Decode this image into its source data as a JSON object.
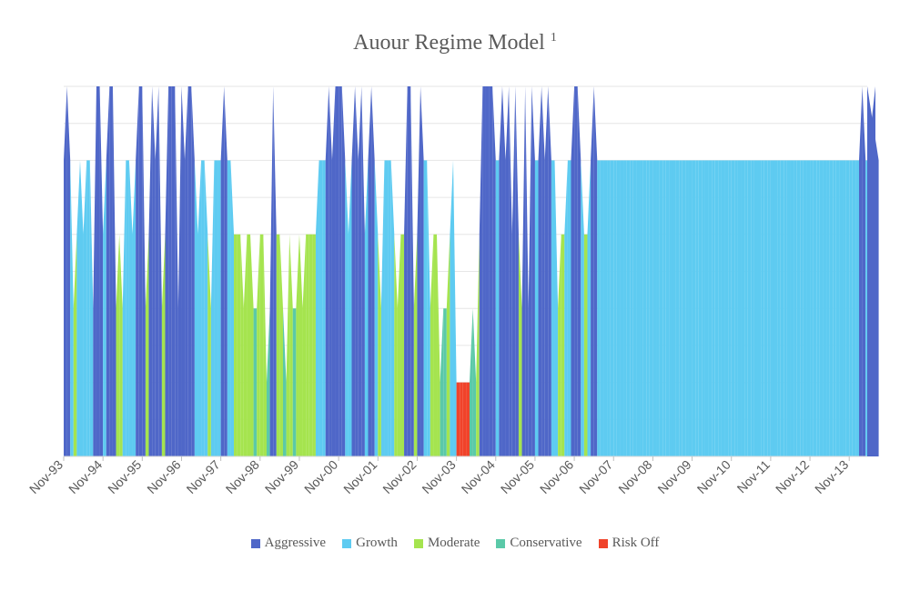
{
  "chart_data": {
    "type": "area",
    "title": "Auour Regime Model",
    "title_superscript": "1",
    "xlabel": "",
    "ylabel": "",
    "ylim": [
      0,
      5
    ],
    "grid": true,
    "legend_position": "bottom",
    "x_tick_labels": [
      "Nov-93",
      "Nov-94",
      "Nov-95",
      "Nov-96",
      "Nov-97",
      "Nov-98",
      "Nov-99",
      "Nov-00",
      "Nov-01",
      "Nov-02",
      "Nov-03",
      "Nov-04",
      "Nov-05",
      "Nov-06",
      "Nov-07",
      "Nov-08",
      "Nov-09",
      "Nov-10",
      "Nov-11",
      "Nov-12",
      "Nov-13"
    ],
    "series": [
      {
        "name": "Aggressive",
        "color": "#4f67c8"
      },
      {
        "name": "Growth",
        "color": "#5ecbf1"
      },
      {
        "name": "Moderate",
        "color": "#a5e44f"
      },
      {
        "name": "Conservative",
        "color": "#5bc9a8"
      },
      {
        "name": "Risk Off",
        "color": "#f0432a"
      }
    ],
    "regime_levels": {
      "Aggressive": 5,
      "Growth": 4,
      "Moderate": 3,
      "Conservative": 2,
      "Risk Off": 1
    },
    "monthly_regime": [
      4,
      5,
      4,
      2,
      3,
      4,
      3,
      4,
      4,
      2,
      5,
      5,
      3,
      4,
      5,
      5,
      2,
      3,
      2,
      4,
      4,
      3,
      4,
      5,
      5,
      2,
      3,
      5,
      4,
      5,
      2,
      3,
      5,
      5,
      5,
      2,
      5,
      4,
      5,
      5,
      4,
      3,
      4,
      4,
      3,
      2,
      4,
      4,
      4,
      5,
      4,
      4,
      3,
      3,
      3,
      2,
      3,
      3,
      2,
      2,
      3,
      3,
      1,
      2,
      5,
      3,
      3,
      2,
      1,
      3,
      2,
      2,
      3,
      2,
      3,
      3,
      3,
      3,
      4,
      4,
      4,
      5,
      4,
      5,
      5,
      5,
      4,
      3,
      4,
      5,
      4,
      5,
      3,
      4,
      5,
      4,
      3,
      2,
      4,
      4,
      4,
      3,
      2,
      3,
      3,
      5,
      5,
      2,
      3,
      5,
      4,
      4,
      2,
      3,
      3,
      1,
      2,
      2,
      3,
      4,
      1,
      1,
      1,
      1,
      1,
      2,
      1,
      3,
      5,
      5,
      5,
      5,
      4,
      4,
      5,
      4,
      5,
      3,
      5,
      3,
      2,
      5,
      2,
      5,
      4,
      4,
      5,
      4,
      5,
      4,
      4,
      2,
      3,
      3,
      4,
      4,
      5,
      5,
      4,
      3,
      3,
      4,
      5,
      4,
      4,
      4,
      4,
      4,
      4,
      4,
      4,
      4,
      4,
      4,
      4,
      4,
      4,
      4,
      4,
      4,
      4,
      4,
      4,
      4,
      4,
      4,
      4,
      4,
      4,
      4,
      4,
      4,
      4,
      4,
      4,
      4,
      4,
      4,
      4,
      4,
      4,
      4,
      4,
      4,
      4,
      4,
      4,
      4,
      4,
      4,
      4,
      4,
      4,
      4,
      4,
      4,
      4,
      4,
      4,
      4,
      4,
      4,
      4,
      4,
      4,
      4,
      4,
      4,
      4,
      4,
      4,
      4,
      4,
      4,
      4,
      4,
      4,
      4,
      4,
      4,
      4,
      4,
      4,
      4,
      5,
      4,
      4,
      4,
      5,
      4,
      5
    ]
  }
}
